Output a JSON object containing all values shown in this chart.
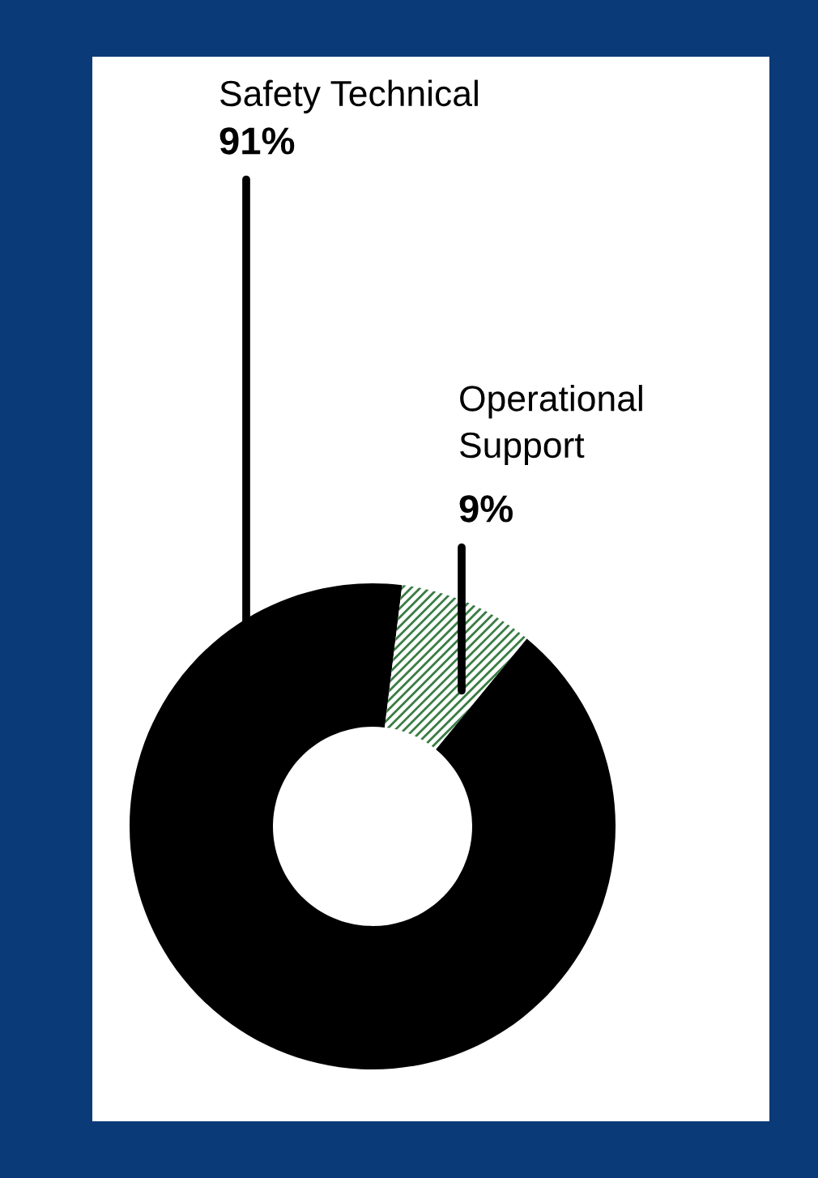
{
  "chart_data": {
    "type": "donut",
    "categories": [
      "Safety Technical",
      "Operational\nSupport"
    ],
    "values": [
      91,
      9
    ],
    "colors": [
      "#000000",
      "#3a7d44"
    ],
    "value_labels": [
      "91%",
      "9%"
    ],
    "legend": false
  }
}
